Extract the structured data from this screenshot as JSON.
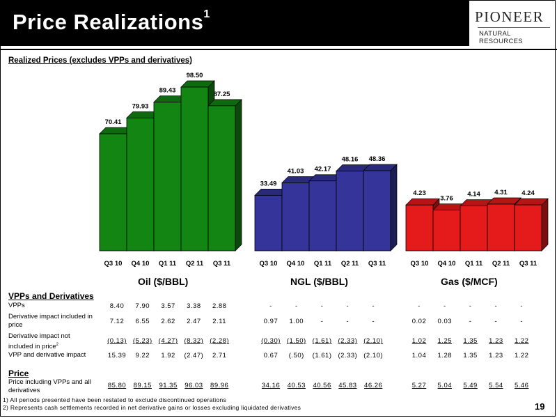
{
  "title": "Price Realizations",
  "title_sup": "1",
  "logo": {
    "name": "PIONEER",
    "sub": "NATURAL RESOURCES"
  },
  "chart_heading": "Realized Prices (excludes VPPs and derivatives)",
  "colors": {
    "oil": "#138513",
    "ngl": "#34349a",
    "gas": "#e51a1a"
  },
  "chart_data": [
    {
      "type": "bar",
      "title": "Oil ($/BBL)",
      "categories": [
        "Q3 10",
        "Q4 10",
        "Q1 11",
        "Q2 11",
        "Q3 11"
      ],
      "values": [
        70.41,
        79.93,
        89.43,
        98.5,
        87.25
      ],
      "labels": [
        "70.41",
        "79.93",
        "89.43",
        "98.50",
        "87.25"
      ]
    },
    {
      "type": "bar",
      "title": "NGL ($/BBL)",
      "categories": [
        "Q3 10",
        "Q4 10",
        "Q1 11",
        "Q2 11",
        "Q3 11"
      ],
      "values": [
        33.49,
        41.03,
        42.17,
        48.16,
        48.36
      ],
      "labels": [
        "33.49",
        "41.03",
        "42.17",
        "48.16",
        "48.36"
      ]
    },
    {
      "type": "bar",
      "title": "Gas ($/MCF)",
      "categories": [
        "Q3 10",
        "Q4 10",
        "Q1 11",
        "Q2 11",
        "Q3 11"
      ],
      "values": [
        4.23,
        3.76,
        4.14,
        4.31,
        4.24
      ],
      "labels": [
        "4.23",
        "3.76",
        "4.14",
        "4.31",
        "4.24"
      ]
    }
  ],
  "vpp_heading": "VPPs and Derivatives",
  "price_heading": "Price",
  "rows": [
    {
      "label": "VPPs",
      "oil": [
        "8.40",
        "7.90",
        "3.57",
        "3.38",
        "2.88"
      ],
      "ngl": [
        "-",
        "-",
        "-",
        "-",
        "-"
      ],
      "gas": [
        "-",
        "-",
        "-",
        "-",
        "-"
      ]
    },
    {
      "label": "Derivative impact included in price",
      "oil": [
        "7.12",
        "6.55",
        "2.62",
        "2.47",
        "2.11"
      ],
      "ngl": [
        "0.97",
        "1.00",
        "-",
        "-",
        "-"
      ],
      "gas": [
        "0.02",
        "0.03",
        "-",
        "-",
        "-"
      ]
    },
    {
      "label": "Derivative impact not included in price",
      "label_sup": "2",
      "oil": [
        "(0.13)",
        "(5.23)",
        "(4.27)",
        "(8.32)",
        "(2.28)"
      ],
      "ngl": [
        "(0.30)",
        "(1.50)",
        "(1.61)",
        "(2.33)",
        "(2.10)"
      ],
      "gas": [
        "1.02",
        "1.25",
        "1.35",
        "1.23",
        "1.22"
      ]
    },
    {
      "label": "VPP and derivative impact",
      "oil": [
        "15.39",
        "9.22",
        "1.92",
        "(2.47)",
        "2.71"
      ],
      "ngl": [
        "0.67",
        "(.50)",
        "(1.61)",
        "(2.33)",
        "(2.10)"
      ],
      "gas": [
        "1.04",
        "1.28",
        "1.35",
        "1.23",
        "1.22"
      ]
    },
    {
      "label": "Price including VPPs and all derivatives",
      "oil": [
        "85.80",
        "89.15",
        "91.35",
        "96.03",
        "89.96"
      ],
      "ngl": [
        "34.16",
        "40.53",
        "40.56",
        "45.83",
        "46.26"
      ],
      "gas": [
        "5.27",
        "5.04",
        "5.49",
        "5.54",
        "5.46"
      ]
    }
  ],
  "footnotes": [
    "1) All periods presented have been restated to exclude discontinued operations",
    "2) Represents cash settlements recorded in net derivative gains or losses excluding liquidated derivatives"
  ],
  "page_number": "19"
}
